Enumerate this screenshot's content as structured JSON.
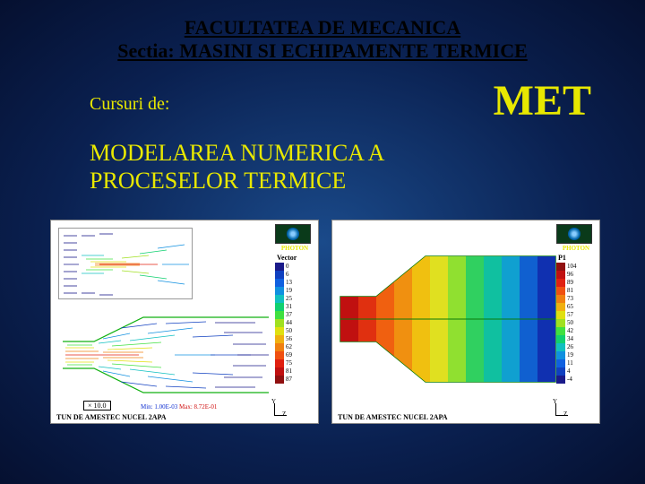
{
  "header": {
    "line1": "FACULTATEA DE MECANICA",
    "line2": "Sectia: MASINI SI ECHIPAMENTE TERMICE"
  },
  "cursuri_label": "Cursuri de:",
  "abbrev": "MET",
  "course_title_line1": "MODELAREA NUMERICA A",
  "course_title_line2": "PROCESELOR TERMICE",
  "figure_left": {
    "type": "vector-field",
    "software_label": "PHOTON",
    "legend_title": "Vector",
    "legend_values": [
      "0",
      "6",
      "13",
      "19",
      "25",
      "31",
      "37",
      "44",
      "50",
      "56",
      "62",
      "69",
      "75",
      "81",
      "87"
    ],
    "colorbar_colors": [
      "#1a1a8a",
      "#1040c0",
      "#1060e0",
      "#1090e0",
      "#10c0c0",
      "#10d070",
      "#40e040",
      "#a0e020",
      "#e0e010",
      "#f0b010",
      "#f08010",
      "#f05010",
      "#e02010",
      "#c01010",
      "#901010"
    ],
    "caption": "TUN DE AMESTEC NUCEL 2APA",
    "xscale": "10.0",
    "min_label": "Min: 1.00E-03",
    "max_label": "Max: 8.72E-01",
    "axis_y": "Y",
    "axis_z": "Z"
  },
  "figure_right": {
    "type": "contour",
    "software_label": "PHOTON",
    "legend_title": "P1",
    "legend_values": [
      "104",
      "96",
      "89",
      "81",
      "73",
      "65",
      "57",
      "50",
      "42",
      "34",
      "26",
      "19",
      "11",
      "4",
      "-4"
    ],
    "colorbar_colors": [
      "#901010",
      "#c01010",
      "#e02010",
      "#f05010",
      "#f08010",
      "#f0b010",
      "#e0e010",
      "#a0e020",
      "#40e040",
      "#10d070",
      "#10c0c0",
      "#1090e0",
      "#1060e0",
      "#1040c0",
      "#1a1a8a"
    ],
    "contour_bands": [
      "#c01010",
      "#e03010",
      "#f06010",
      "#f09010",
      "#f0c010",
      "#e0e020",
      "#90e030",
      "#30d060",
      "#10c0a0",
      "#10a0d0",
      "#1060d0",
      "#1030b0"
    ],
    "caption": "TUN DE AMESTEC NUCEL 2APA",
    "axis_y": "Y",
    "axis_z": "Z"
  }
}
